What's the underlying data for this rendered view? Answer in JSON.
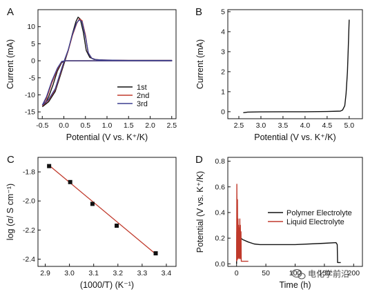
{
  "watermark": {
    "text": "电化学前沿",
    "icon": "wechat-bubble-icon"
  },
  "chart_data": [
    {
      "panel": "A",
      "type": "line",
      "xlabel": "Potential (V vs. K⁺/K)",
      "ylabel": "Current (mA)",
      "xlim": [
        -0.6,
        2.6
      ],
      "ylim": [
        -17,
        15
      ],
      "xticks": [
        -0.5,
        0.0,
        0.5,
        1.0,
        1.5,
        2.0,
        2.5
      ],
      "xtick_labels": [
        "-0.5",
        "0.0",
        "0.5",
        "1.0",
        "1.5",
        "2.0",
        "2.5"
      ],
      "yticks": [
        -15,
        -10,
        -5,
        0,
        5,
        10
      ],
      "ytick_labels": [
        "-15",
        "-10",
        "-5",
        "0",
        "5",
        "10"
      ],
      "legend": {
        "position": "lower-right",
        "entries": [
          "1st",
          "2nd",
          "3rd"
        ]
      },
      "series": [
        {
          "name": "1st",
          "color": "#111111",
          "x": [
            -0.5,
            -0.35,
            -0.2,
            -0.1,
            0.0,
            0.1,
            0.2,
            0.28,
            0.33,
            0.38,
            0.45,
            0.52,
            0.6,
            0.7,
            0.9,
            1.3,
            1.8,
            2.5,
            2.5,
            2.0,
            1.0,
            0.5,
            0.2,
            0.05,
            -0.05,
            -0.15,
            -0.25,
            -0.35,
            -0.45,
            -0.5
          ],
          "y": [
            -13.5,
            -12,
            -9,
            -5,
            -1,
            3,
            8,
            11.5,
            12.8,
            12.2,
            8.5,
            3,
            1,
            0.4,
            0.2,
            0.1,
            0.1,
            0.1,
            0,
            0,
            0,
            0,
            0,
            0,
            -0.5,
            -3,
            -7,
            -10.5,
            -13,
            -13.5
          ]
        },
        {
          "name": "2nd",
          "color": "#c0392b",
          "x": [
            -0.5,
            -0.35,
            -0.2,
            -0.1,
            0.0,
            0.1,
            0.2,
            0.3,
            0.36,
            0.42,
            0.5,
            0.56,
            0.64,
            0.75,
            1.0,
            1.5,
            2.0,
            2.5,
            2.5,
            2.0,
            1.0,
            0.5,
            0.2,
            0.05,
            -0.05,
            -0.15,
            -0.28,
            -0.4,
            -0.5
          ],
          "y": [
            -13.2,
            -11.5,
            -8.5,
            -4.5,
            -0.5,
            3,
            7.5,
            11,
            12.3,
            11.8,
            7.5,
            2.5,
            0.8,
            0.3,
            0.2,
            0.1,
            0.1,
            0.1,
            0,
            0,
            0,
            0,
            0,
            0,
            -0.3,
            -2.5,
            -6.5,
            -11,
            -13.2
          ]
        },
        {
          "name": "3rd",
          "color": "#3b3f8f",
          "x": [
            -0.5,
            -0.35,
            -0.2,
            -0.1,
            0.0,
            0.1,
            0.2,
            0.3,
            0.36,
            0.42,
            0.5,
            0.57,
            0.65,
            0.75,
            1.0,
            1.5,
            2.0,
            2.5,
            2.5,
            2.0,
            1.0,
            0.5,
            0.2,
            0.05,
            -0.05,
            -0.15,
            -0.28,
            -0.4,
            -0.5
          ],
          "y": [
            -13.0,
            -11.3,
            -8.2,
            -4.2,
            -0.3,
            3.2,
            7.8,
            11.2,
            12.0,
            11.5,
            7.0,
            2.2,
            0.7,
            0.3,
            0.2,
            0.1,
            0.1,
            0.1,
            0,
            0,
            0,
            0,
            0,
            0,
            -0.2,
            -2.2,
            -6,
            -10.5,
            -13.0
          ]
        }
      ]
    },
    {
      "panel": "B",
      "type": "line",
      "xlabel": "Potential (V vs. K⁺/K)",
      "ylabel": "Current (mA)",
      "xlim": [
        2.25,
        5.3
      ],
      "ylim": [
        -0.35,
        5.1
      ],
      "xticks": [
        2.5,
        3.0,
        3.5,
        4.0,
        4.5,
        5.0
      ],
      "xtick_labels": [
        "2.5",
        "3.0",
        "3.5",
        "4.0",
        "4.5",
        "5.0"
      ],
      "yticks": [
        0,
        1,
        2,
        3,
        4,
        5
      ],
      "ytick_labels": [
        "0",
        "1",
        "2",
        "3",
        "4",
        "5"
      ],
      "series": [
        {
          "color": "#111111",
          "x": [
            2.6,
            2.7,
            3.0,
            3.5,
            4.0,
            4.5,
            4.8,
            4.85,
            4.9,
            4.93,
            4.96,
            4.98,
            5.0
          ],
          "y": [
            -0.05,
            -0.02,
            -0.01,
            0.0,
            0.0,
            0.01,
            0.03,
            0.08,
            0.3,
            0.9,
            2.0,
            3.2,
            4.6
          ]
        }
      ]
    },
    {
      "panel": "C",
      "type": "scatter",
      "xlabel": "(1000/T) (K⁻¹)",
      "ylabel": "log (σ/ S cm⁻¹)",
      "xlim": [
        2.87,
        3.44
      ],
      "ylim": [
        -2.45,
        -1.7
      ],
      "xticks": [
        2.9,
        3.0,
        3.1,
        3.2,
        3.3,
        3.4
      ],
      "xtick_labels": [
        "2.9",
        "3.0",
        "3.1",
        "3.2",
        "3.3",
        "3.4"
      ],
      "yticks": [
        -2.4,
        -2.2,
        -2.0,
        -1.8
      ],
      "ytick_labels": [
        "-2.4",
        "-2.2",
        "-2.0",
        "-1.8"
      ],
      "points": {
        "x": [
          2.916,
          3.003,
          3.095,
          3.195,
          3.356
        ],
        "y": [
          -1.76,
          -1.87,
          -2.02,
          -2.17,
          -2.36
        ]
      },
      "fit_line": {
        "color": "#c0392b",
        "x": [
          2.916,
          3.356
        ],
        "y": [
          -1.755,
          -2.365
        ]
      }
    },
    {
      "panel": "D",
      "type": "line",
      "xlabel": "Time (h)",
      "ylabel": "Potential (V vs. K⁺/K)",
      "xlim": [
        -15,
        215
      ],
      "ylim": [
        -0.02,
        0.83
      ],
      "xticks": [
        0,
        50,
        100,
        150,
        200
      ],
      "xtick_labels": [
        "0",
        "50",
        "100",
        "150",
        "200"
      ],
      "yticks": [
        0.0,
        0.2,
        0.4,
        0.6,
        0.8
      ],
      "ytick_labels": [
        "0.0",
        "0.2",
        "0.4",
        "0.6",
        "0.8"
      ],
      "legend": {
        "position": "upper-right",
        "entries": [
          "Polymer Electrolyte",
          "Liquid Electrolyte"
        ]
      },
      "series": [
        {
          "name": "Polymer Electrolyte",
          "color": "#111111",
          "x": [
            0,
            0.5,
            2,
            5,
            10,
            20,
            30,
            40,
            60,
            100,
            150,
            170,
            172,
            172.5,
            178
          ],
          "y": [
            0.0,
            0.25,
            0.23,
            0.21,
            0.19,
            0.17,
            0.155,
            0.15,
            0.15,
            0.15,
            0.16,
            0.165,
            0.15,
            0.01,
            0.01
          ]
        },
        {
          "name": "Liquid Electrolyte",
          "color": "#c0392b",
          "x": [
            0,
            0.5,
            1,
            1.5,
            2,
            2.5,
            3,
            3.5,
            4,
            4.5,
            5,
            5.5,
            6,
            6.5,
            7,
            7.5,
            8,
            20
          ],
          "y": [
            0.02,
            0.62,
            0.03,
            0.5,
            0.04,
            0.35,
            0.05,
            0.3,
            0.04,
            0.28,
            0.05,
            0.35,
            0.04,
            0.3,
            0.04,
            0.25,
            0.02,
            0.02
          ]
        }
      ]
    }
  ]
}
